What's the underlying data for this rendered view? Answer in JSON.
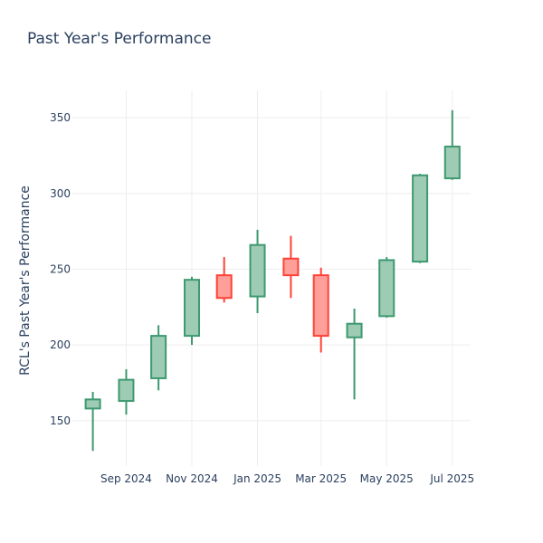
{
  "chart_data": {
    "type": "candlestick",
    "title": "Past Year's Performance",
    "xlabel": "",
    "ylabel": "RCL's Past Year's Performance",
    "ylim": [
      120,
      368
    ],
    "y_ticks": [
      150,
      200,
      250,
      300,
      350
    ],
    "x_ticks": [
      {
        "date": "2024-09-01",
        "label": "Sep 2024"
      },
      {
        "date": "2024-11-01",
        "label": "Nov 2024"
      },
      {
        "date": "2025-01-01",
        "label": "Jan 2025"
      },
      {
        "date": "2025-03-01",
        "label": "Mar 2025"
      },
      {
        "date": "2025-05-01",
        "label": "May 2025"
      },
      {
        "date": "2025-07-01",
        "label": "Jul 2025"
      }
    ],
    "x_range": [
      "2024-07-13",
      "2025-07-18"
    ],
    "grid": true,
    "colors": {
      "increasing": "#3d9970",
      "increasing_fill": "#9ecbb4",
      "decreasing": "#ff4136",
      "decreasing_fill": "#ff9f9a",
      "grid": "#eeeeee",
      "text": "#2a3f5f"
    },
    "candles": [
      {
        "date": "2024-08-01",
        "open": 158,
        "high": 169,
        "low": 130,
        "close": 164
      },
      {
        "date": "2024-09-01",
        "open": 163,
        "high": 184,
        "low": 154,
        "close": 177
      },
      {
        "date": "2024-10-01",
        "open": 178,
        "high": 213,
        "low": 170,
        "close": 206
      },
      {
        "date": "2024-11-01",
        "open": 206,
        "high": 245,
        "low": 200,
        "close": 243
      },
      {
        "date": "2024-12-01",
        "open": 246,
        "high": 258,
        "low": 228,
        "close": 231
      },
      {
        "date": "2025-01-01",
        "open": 232,
        "high": 276,
        "low": 221,
        "close": 266
      },
      {
        "date": "2025-02-01",
        "open": 257,
        "high": 272,
        "low": 231,
        "close": 246
      },
      {
        "date": "2025-03-01",
        "open": 246,
        "high": 251,
        "low": 195,
        "close": 206
      },
      {
        "date": "2025-04-01",
        "open": 205,
        "high": 224,
        "low": 164,
        "close": 214
      },
      {
        "date": "2025-05-01",
        "open": 219,
        "high": 258,
        "low": 218,
        "close": 256
      },
      {
        "date": "2025-06-01",
        "open": 255,
        "high": 313,
        "low": 254,
        "close": 312
      },
      {
        "date": "2025-07-01",
        "open": 310,
        "high": 355,
        "low": 309,
        "close": 331
      }
    ]
  }
}
